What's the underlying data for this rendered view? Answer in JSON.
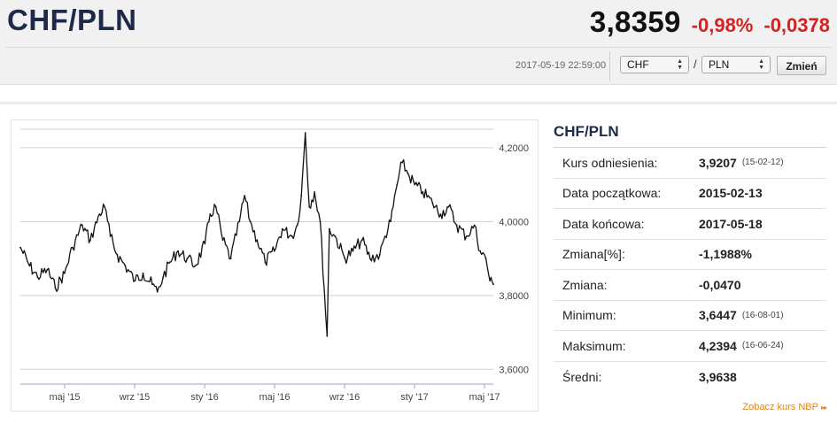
{
  "header": {
    "pair": "CHF/PLN",
    "rate": "3,8359",
    "change_pct": "-0,98%",
    "change_abs": "-0,0378"
  },
  "toolbar": {
    "timestamp": "2017-05-19 22:59:00",
    "from_currency": "CHF",
    "separator": "/",
    "to_currency": "PLN",
    "change_button": "Zmień"
  },
  "chart_data": {
    "type": "line",
    "title": "",
    "xlabel": "",
    "ylabel": "",
    "x_ticks": [
      "maj '15",
      "wrz '15",
      "sty '16",
      "maj '16",
      "wrz '16",
      "sty '17",
      "maj '17"
    ],
    "y_ticks": [
      "3,6000",
      "3,8000",
      "4,0000",
      "4,2000"
    ],
    "ylim": [
      3.56,
      4.25
    ],
    "xlim": [
      "2015-02-13",
      "2017-05-18"
    ],
    "grid": true,
    "series": [
      {
        "name": "",
        "color": "#111111",
        "points": [
          [
            "2015-02-13",
            3.93
          ],
          [
            "2015-03-01",
            3.88
          ],
          [
            "2015-03-15",
            3.85
          ],
          [
            "2015-04-01",
            3.87
          ],
          [
            "2015-04-15",
            3.82
          ],
          [
            "2015-05-01",
            3.86
          ],
          [
            "2015-05-15",
            3.93
          ],
          [
            "2015-06-01",
            3.99
          ],
          [
            "2015-06-15",
            3.95
          ],
          [
            "2015-07-01",
            4.02
          ],
          [
            "2015-07-10",
            4.04
          ],
          [
            "2015-07-20",
            3.96
          ],
          [
            "2015-08-01",
            3.91
          ],
          [
            "2015-08-15",
            3.88
          ],
          [
            "2015-09-01",
            3.84
          ],
          [
            "2015-09-15",
            3.86
          ],
          [
            "2015-10-01",
            3.83
          ],
          [
            "2015-10-10",
            3.81
          ],
          [
            "2015-10-20",
            3.85
          ],
          [
            "2015-11-01",
            3.89
          ],
          [
            "2015-11-15",
            3.92
          ],
          [
            "2015-12-01",
            3.9
          ],
          [
            "2015-12-15",
            3.88
          ],
          [
            "2016-01-01",
            3.94
          ],
          [
            "2016-01-10",
            4.02
          ],
          [
            "2016-01-20",
            4.04
          ],
          [
            "2016-02-01",
            3.95
          ],
          [
            "2016-02-15",
            3.9
          ],
          [
            "2016-03-01",
            4.0
          ],
          [
            "2016-03-10",
            4.07
          ],
          [
            "2016-03-20",
            4.0
          ],
          [
            "2016-04-01",
            3.95
          ],
          [
            "2016-04-15",
            3.89
          ],
          [
            "2016-05-01",
            3.92
          ],
          [
            "2016-05-15",
            3.98
          ],
          [
            "2016-06-01",
            3.96
          ],
          [
            "2016-06-10",
            3.99
          ],
          [
            "2016-06-17",
            4.07
          ],
          [
            "2016-06-24",
            4.24
          ],
          [
            "2016-07-01",
            4.04
          ],
          [
            "2016-07-10",
            4.08
          ],
          [
            "2016-07-20",
            4.0
          ],
          [
            "2016-08-01",
            3.69
          ],
          [
            "2016-08-05",
            3.98
          ],
          [
            "2016-08-15",
            3.96
          ],
          [
            "2016-09-01",
            3.9
          ],
          [
            "2016-09-15",
            3.92
          ],
          [
            "2016-10-01",
            3.95
          ],
          [
            "2016-10-15",
            3.9
          ],
          [
            "2016-11-01",
            3.91
          ],
          [
            "2016-11-10",
            3.96
          ],
          [
            "2016-11-20",
            4.0
          ],
          [
            "2016-12-01",
            4.1
          ],
          [
            "2016-12-10",
            4.16
          ],
          [
            "2016-12-20",
            4.13
          ],
          [
            "2017-01-01",
            4.1
          ],
          [
            "2017-01-15",
            4.08
          ],
          [
            "2017-02-01",
            4.05
          ],
          [
            "2017-02-15",
            4.02
          ],
          [
            "2017-03-01",
            4.04
          ],
          [
            "2017-03-15",
            3.99
          ],
          [
            "2017-04-01",
            3.96
          ],
          [
            "2017-04-15",
            3.99
          ],
          [
            "2017-04-25",
            3.92
          ],
          [
            "2017-05-05",
            3.9
          ],
          [
            "2017-05-12",
            3.84
          ],
          [
            "2017-05-18",
            3.83
          ]
        ]
      }
    ]
  },
  "stats": {
    "title": "CHF/PLN",
    "rows": [
      {
        "label": "Kurs odniesienia:",
        "value": "3,9207",
        "date": "(15-02-12)"
      },
      {
        "label": "Data początkowa:",
        "value": "2015-02-13",
        "date": ""
      },
      {
        "label": "Data końcowa:",
        "value": "2017-05-18",
        "date": ""
      },
      {
        "label": "Zmiana[%]:",
        "value": "-1,1988%",
        "date": ""
      },
      {
        "label": "Zmiana:",
        "value": "-0,0470",
        "date": ""
      },
      {
        "label": "Minimum:",
        "value": "3,6447",
        "date": "(16-08-01)"
      },
      {
        "label": "Maksimum:",
        "value": "4,2394",
        "date": "(16-06-24)"
      },
      {
        "label": "Średni:",
        "value": "3,9638",
        "date": ""
      }
    ],
    "link": "Zobacz kurs NBP",
    "link_arrow": "▸▸"
  }
}
